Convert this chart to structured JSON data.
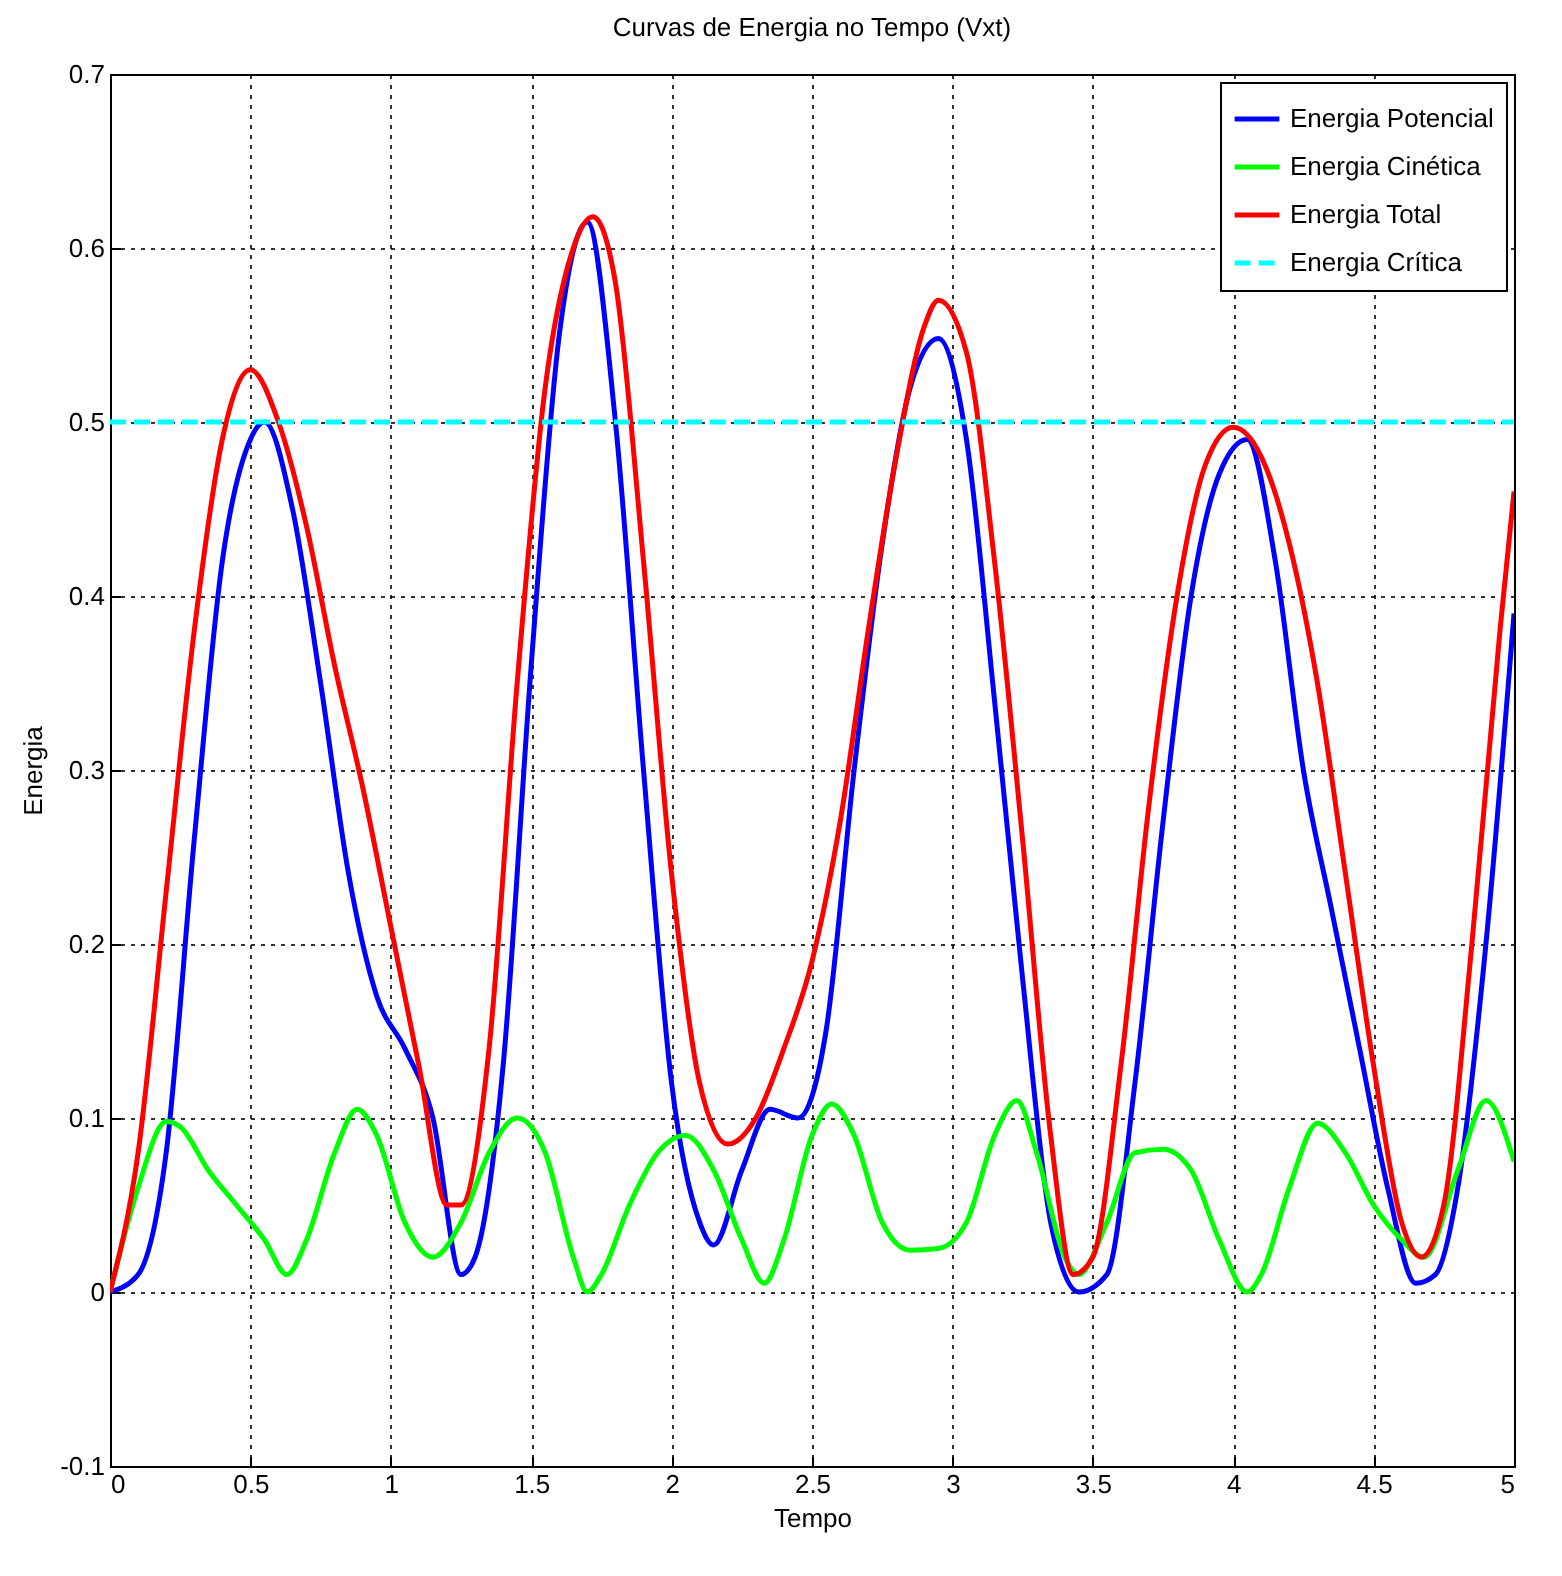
{
  "chart_data": {
    "type": "line",
    "title": "Curvas de Energia no Tempo (Vxt)",
    "xlabel": "Tempo",
    "ylabel": "Energia",
    "xlim": [
      0,
      5
    ],
    "xticks": [
      0,
      0.5,
      1,
      1.5,
      2,
      2.5,
      3,
      3.5,
      4,
      4.5,
      5
    ],
    "ylim": [
      -0.1,
      0.7
    ],
    "yticks": [
      -0.1,
      0,
      0.1,
      0.2,
      0.3,
      0.4,
      0.5,
      0.6,
      0.7
    ],
    "grid": true,
    "legend": "top right",
    "series": [
      {
        "name": "Energia Potencial",
        "color": "#0000ff",
        "line_style": "solid",
        "x": [
          0,
          0.1,
          0.2,
          0.3,
          0.4,
          0.5,
          0.55,
          0.65,
          0.75,
          0.85,
          0.95,
          1.05,
          1.15,
          1.25,
          1.3,
          1.4,
          1.5,
          1.6,
          1.7,
          1.8,
          1.9,
          2,
          2.1,
          2.15,
          2.25,
          2.35,
          2.45,
          2.55,
          2.65,
          2.75,
          2.85,
          2.95,
          3.05,
          3.15,
          3.25,
          3.35,
          3.45,
          3.55,
          3.65,
          3.75,
          3.85,
          3.95,
          4.05,
          4.15,
          4.25,
          4.35,
          4.45,
          4.55,
          4.65,
          4.72,
          4.8,
          4.9,
          5
        ],
        "values": [
          0,
          0.01,
          0.08,
          0.26,
          0.42,
          0.49,
          0.5,
          0.45,
          0.35,
          0.24,
          0.17,
          0.14,
          0.1,
          0.01,
          0.02,
          0.13,
          0.36,
          0.55,
          0.615,
          0.5,
          0.3,
          0.12,
          0.04,
          0.027,
          0.07,
          0.105,
          0.1,
          0.15,
          0.3,
          0.43,
          0.52,
          0.548,
          0.49,
          0.34,
          0.18,
          0.04,
          0,
          0.01,
          0.12,
          0.27,
          0.4,
          0.47,
          0.49,
          0.42,
          0.3,
          0.22,
          0.14,
          0.06,
          0.005,
          0.01,
          0.06,
          0.2,
          0.39
        ]
      },
      {
        "name": "Energia Cinética",
        "color": "#00ff00",
        "line_style": "solid",
        "x": [
          0,
          0.1,
          0.2,
          0.25,
          0.35,
          0.45,
          0.55,
          0.63,
          0.7,
          0.8,
          0.88,
          0.95,
          1.05,
          1.15,
          1.25,
          1.35,
          1.45,
          1.55,
          1.65,
          1.7,
          1.75,
          1.85,
          1.95,
          2.05,
          2.15,
          2.25,
          2.33,
          2.4,
          2.5,
          2.57,
          2.65,
          2.75,
          2.85,
          2.95,
          3.05,
          3.15,
          3.23,
          3.3,
          3.4,
          3.45,
          3.55,
          3.65,
          3.75,
          3.85,
          3.95,
          4.05,
          4.1,
          4.2,
          4.3,
          4.4,
          4.5,
          4.6,
          4.68,
          4.8,
          4.9,
          5
        ],
        "values": [
          0,
          0.06,
          0.098,
          0.095,
          0.07,
          0.05,
          0.03,
          0.01,
          0.03,
          0.08,
          0.105,
          0.09,
          0.04,
          0.02,
          0.04,
          0.08,
          0.1,
          0.08,
          0.02,
          0,
          0.01,
          0.05,
          0.08,
          0.09,
          0.07,
          0.03,
          0.005,
          0.03,
          0.09,
          0.108,
          0.09,
          0.04,
          0.024,
          0.025,
          0.04,
          0.09,
          0.11,
          0.08,
          0.02,
          0.01,
          0.04,
          0.08,
          0.082,
          0.07,
          0.03,
          0,
          0.01,
          0.06,
          0.097,
          0.08,
          0.05,
          0.03,
          0.02,
          0.07,
          0.11,
          0.075
        ]
      },
      {
        "name": "Energia Total",
        "color": "#ff0000",
        "line_style": "solid",
        "x": [
          0,
          0.1,
          0.2,
          0.3,
          0.4,
          0.5,
          0.6,
          0.7,
          0.8,
          0.9,
          1,
          1.1,
          1.2,
          1.25,
          1.35,
          1.45,
          1.55,
          1.65,
          1.72,
          1.8,
          1.9,
          2,
          2.1,
          2.2,
          2.3,
          2.4,
          2.5,
          2.6,
          2.7,
          2.8,
          2.9,
          2.95,
          3.05,
          3.15,
          3.25,
          3.35,
          3.43,
          3.5,
          3.6,
          3.7,
          3.8,
          3.9,
          4,
          4.1,
          4.2,
          4.3,
          4.4,
          4.5,
          4.6,
          4.67,
          4.75,
          4.85,
          4.95,
          5
        ],
        "values": [
          0,
          0.08,
          0.23,
          0.38,
          0.49,
          0.53,
          0.5,
          0.44,
          0.36,
          0.29,
          0.21,
          0.13,
          0.05,
          0.05,
          0.14,
          0.35,
          0.52,
          0.6,
          0.618,
          0.58,
          0.42,
          0.24,
          0.12,
          0.085,
          0.1,
          0.14,
          0.19,
          0.27,
          0.38,
          0.48,
          0.555,
          0.57,
          0.54,
          0.42,
          0.26,
          0.09,
          0.01,
          0.02,
          0.13,
          0.28,
          0.4,
          0.475,
          0.497,
          0.48,
          0.43,
          0.35,
          0.24,
          0.13,
          0.04,
          0.02,
          0.05,
          0.2,
          0.38,
          0.46
        ]
      },
      {
        "name": "Energia Crítica",
        "color": "#00ffff",
        "line_style": "dashed",
        "x": [
          0,
          5
        ],
        "values": [
          0.5,
          0.5
        ]
      }
    ]
  }
}
